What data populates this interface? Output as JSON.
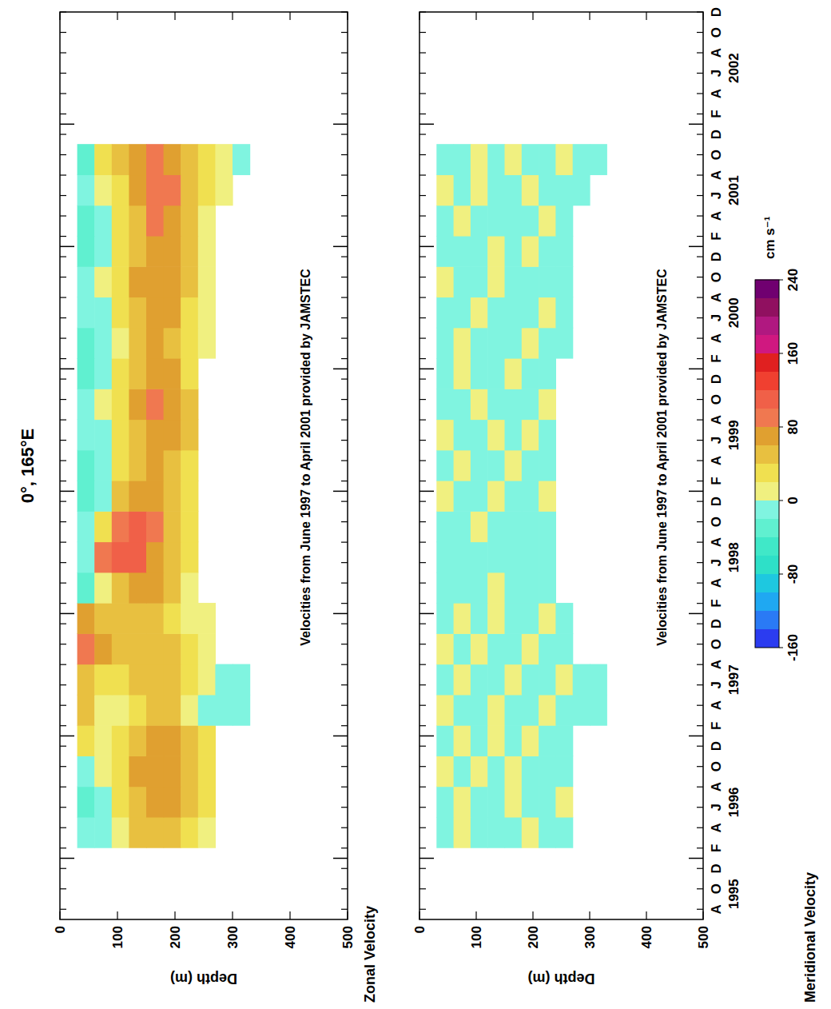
{
  "title": "0°, 165°E",
  "colorbar": {
    "label": "cm s⁻¹",
    "range": [
      -160,
      240
    ],
    "ticks": [
      -160,
      -80,
      0,
      80,
      160,
      240
    ],
    "levels": [
      -160,
      -140,
      -120,
      -100,
      -80,
      -60,
      -40,
      -20,
      0,
      20,
      40,
      60,
      80,
      100,
      120,
      140,
      160,
      180,
      200,
      220,
      240
    ],
    "colors": [
      "#2b3cf0",
      "#2a7af5",
      "#1fa8f2",
      "#1ec8e0",
      "#2ee0c8",
      "#40e8c8",
      "#60f0d0",
      "#80f4e0",
      "#f0f080",
      "#f0e050",
      "#e8c040",
      "#e0a030",
      "#f07850",
      "#f06048",
      "#f04030",
      "#e02020",
      "#d01880",
      "#b01880",
      "#901060",
      "#700070"
    ]
  },
  "chart_data": [
    {
      "type": "heatmap",
      "title": "Zonal Velocity",
      "y_label": "Depth (m)",
      "annotation": "Velocities from June 1997 to April 2001 provided by JAMSTEC",
      "tick_labels": "y",
      "xlim": [
        "1995-07",
        "2002-12"
      ],
      "xticks": [
        {
          "value": "1995-08",
          "label": "A"
        },
        {
          "value": "1995-10",
          "label": "O"
        },
        {
          "value": "1995-12",
          "label": "D"
        },
        {
          "value": "1996-02",
          "label": "F"
        },
        {
          "value": "1996-04",
          "label": "A"
        },
        {
          "value": "1996-06",
          "label": "J"
        },
        {
          "value": "1996-08",
          "label": "A"
        },
        {
          "value": "1996-10",
          "label": "O"
        },
        {
          "value": "1996-12",
          "label": "D"
        },
        {
          "value": "1997-02",
          "label": "F"
        },
        {
          "value": "1997-04",
          "label": "A"
        },
        {
          "value": "1997-06",
          "label": "J"
        },
        {
          "value": "1997-08",
          "label": "A"
        },
        {
          "value": "1997-10",
          "label": "O"
        },
        {
          "value": "1997-12",
          "label": "D"
        },
        {
          "value": "1998-02",
          "label": "F"
        },
        {
          "value": "1998-04",
          "label": "A"
        },
        {
          "value": "1998-06",
          "label": "J"
        },
        {
          "value": "1998-08",
          "label": "A"
        },
        {
          "value": "1998-10",
          "label": "O"
        },
        {
          "value": "1998-12",
          "label": "D"
        },
        {
          "value": "1999-02",
          "label": "F"
        },
        {
          "value": "1999-04",
          "label": "A"
        },
        {
          "value": "1999-06",
          "label": "J"
        },
        {
          "value": "1999-08",
          "label": "A"
        },
        {
          "value": "1999-10",
          "label": "O"
        },
        {
          "value": "1999-12",
          "label": "D"
        },
        {
          "value": "2000-02",
          "label": "F"
        },
        {
          "value": "2000-04",
          "label": "A"
        },
        {
          "value": "2000-06",
          "label": "J"
        },
        {
          "value": "2000-08",
          "label": "A"
        },
        {
          "value": "2000-10",
          "label": "O"
        },
        {
          "value": "2000-12",
          "label": "D"
        },
        {
          "value": "2001-02",
          "label": "F"
        },
        {
          "value": "2001-04",
          "label": "A"
        },
        {
          "value": "2001-06",
          "label": "J"
        },
        {
          "value": "2001-08",
          "label": "A"
        },
        {
          "value": "2001-10",
          "label": "O"
        },
        {
          "value": "2001-12",
          "label": "D"
        },
        {
          "value": "2002-02",
          "label": "F"
        },
        {
          "value": "2002-04",
          "label": "A"
        },
        {
          "value": "2002-06",
          "label": "J"
        },
        {
          "value": "2002-08",
          "label": "A"
        },
        {
          "value": "2002-10",
          "label": "O"
        },
        {
          "value": "2002-12",
          "label": "D"
        }
      ],
      "years": [
        1995,
        1996,
        1997,
        1998,
        1999,
        2000,
        2001,
        2002
      ],
      "ylim": [
        0,
        500
      ],
      "yticks": [
        0,
        100,
        200,
        300,
        400,
        500
      ],
      "x_edges": [
        "1996-02",
        "1996-05",
        "1996-08",
        "1996-11",
        "1997-02",
        "1997-05",
        "1997-08",
        "1997-11",
        "1998-02",
        "1998-05",
        "1998-08",
        "1998-11",
        "1999-02",
        "1999-05",
        "1999-08",
        "1999-11",
        "2000-02",
        "2000-05",
        "2000-08",
        "2000-11",
        "2001-02",
        "2001-05",
        "2001-08",
        "2001-11"
      ],
      "y_edges": [
        30,
        60,
        90,
        120,
        150,
        180,
        210,
        240,
        270,
        300,
        330
      ],
      "cells": [
        [
          -20,
          -10,
          10,
          40,
          50,
          40,
          30,
          10,
          null,
          null
        ],
        [
          -30,
          -10,
          20,
          50,
          60,
          60,
          40,
          20,
          null,
          null
        ],
        [
          -20,
          0,
          30,
          60,
          70,
          70,
          50,
          20,
          null,
          null
        ],
        [
          20,
          10,
          20,
          40,
          60,
          60,
          40,
          20,
          null,
          null
        ],
        [
          40,
          0,
          10,
          30,
          50,
          40,
          10,
          -10,
          -20,
          -20
        ],
        [
          50,
          30,
          20,
          40,
          50,
          40,
          20,
          0,
          -10,
          -20
        ],
        [
          80,
          60,
          40,
          40,
          50,
          40,
          20,
          10,
          null,
          null
        ],
        [
          60,
          50,
          40,
          40,
          40,
          30,
          10,
          0,
          null,
          null
        ],
        [
          -30,
          10,
          50,
          60,
          60,
          40,
          10,
          null,
          null,
          null
        ],
        [
          -10,
          80,
          110,
          100,
          70,
          50,
          20,
          null,
          null,
          null
        ],
        [
          -20,
          30,
          90,
          100,
          80,
          50,
          20,
          null,
          null,
          null
        ],
        [
          -40,
          -10,
          40,
          60,
          60,
          50,
          20,
          null,
          null,
          null
        ],
        [
          -30,
          -10,
          20,
          50,
          60,
          50,
          30,
          null,
          null,
          null
        ],
        [
          -20,
          -10,
          20,
          50,
          70,
          60,
          40,
          null,
          null,
          null
        ],
        [
          -20,
          0,
          30,
          60,
          80,
          70,
          40,
          null,
          null,
          null
        ],
        [
          -40,
          -20,
          20,
          50,
          70,
          60,
          30,
          null,
          null,
          null
        ],
        [
          -30,
          -20,
          10,
          40,
          60,
          50,
          30,
          10,
          null,
          null
        ],
        [
          -20,
          -10,
          20,
          50,
          70,
          60,
          30,
          10,
          null,
          null
        ],
        [
          -20,
          0,
          30,
          60,
          70,
          60,
          40,
          10,
          null,
          null
        ],
        [
          -30,
          -10,
          20,
          50,
          60,
          60,
          40,
          10,
          null,
          null
        ],
        [
          -30,
          -10,
          20,
          50,
          80,
          70,
          40,
          10,
          null,
          null
        ],
        [
          -20,
          10,
          30,
          60,
          90,
          80,
          40,
          20,
          0,
          null
        ],
        [
          -30,
          20,
          40,
          70,
          90,
          70,
          40,
          20,
          0,
          -10
        ]
      ]
    },
    {
      "type": "heatmap",
      "title": "Meridional Velocity",
      "y_label": "Depth (m)",
      "annotation": "Velocities from June 1997 to April 2001 provided by JAMSTEC",
      "xlim": [
        "1995-07",
        "2002-12"
      ],
      "xticks": [
        {
          "value": "1995-08",
          "label": "A"
        },
        {
          "value": "1995-10",
          "label": "O"
        },
        {
          "value": "1995-12",
          "label": "D"
        },
        {
          "value": "1996-02",
          "label": "F"
        },
        {
          "value": "1996-04",
          "label": "A"
        },
        {
          "value": "1996-06",
          "label": "J"
        },
        {
          "value": "1996-08",
          "label": "A"
        },
        {
          "value": "1996-10",
          "label": "O"
        },
        {
          "value": "1996-12",
          "label": "D"
        },
        {
          "value": "1997-02",
          "label": "F"
        },
        {
          "value": "1997-04",
          "label": "A"
        },
        {
          "value": "1997-06",
          "label": "J"
        },
        {
          "value": "1997-08",
          "label": "A"
        },
        {
          "value": "1997-10",
          "label": "O"
        },
        {
          "value": "1997-12",
          "label": "D"
        },
        {
          "value": "1998-02",
          "label": "F"
        },
        {
          "value": "1998-04",
          "label": "A"
        },
        {
          "value": "1998-06",
          "label": "J"
        },
        {
          "value": "1998-08",
          "label": "A"
        },
        {
          "value": "1998-10",
          "label": "O"
        },
        {
          "value": "1998-12",
          "label": "D"
        },
        {
          "value": "1999-02",
          "label": "F"
        },
        {
          "value": "1999-04",
          "label": "A"
        },
        {
          "value": "1999-06",
          "label": "J"
        },
        {
          "value": "1999-08",
          "label": "A"
        },
        {
          "value": "1999-10",
          "label": "O"
        },
        {
          "value": "1999-12",
          "label": "D"
        },
        {
          "value": "2000-02",
          "label": "F"
        },
        {
          "value": "2000-04",
          "label": "A"
        },
        {
          "value": "2000-06",
          "label": "J"
        },
        {
          "value": "2000-08",
          "label": "A"
        },
        {
          "value": "2000-10",
          "label": "O"
        },
        {
          "value": "2000-12",
          "label": "D"
        },
        {
          "value": "2001-02",
          "label": "F"
        },
        {
          "value": "2001-04",
          "label": "A"
        },
        {
          "value": "2001-06",
          "label": "J"
        },
        {
          "value": "2001-08",
          "label": "A"
        },
        {
          "value": "2001-10",
          "label": "O"
        },
        {
          "value": "2001-12",
          "label": "D"
        },
        {
          "value": "2002-02",
          "label": "F"
        },
        {
          "value": "2002-04",
          "label": "A"
        },
        {
          "value": "2002-06",
          "label": "J"
        },
        {
          "value": "2002-08",
          "label": "A"
        },
        {
          "value": "2002-10",
          "label": "O"
        },
        {
          "value": "2002-12",
          "label": "D"
        }
      ],
      "years": [
        1995,
        1996,
        1997,
        1998,
        1999,
        2000,
        2001,
        2002
      ],
      "ylim": [
        0,
        500
      ],
      "yticks": [
        0,
        100,
        200,
        300,
        400,
        500
      ],
      "x_edges": [
        "1996-02",
        "1996-05",
        "1996-08",
        "1996-11",
        "1997-02",
        "1997-05",
        "1997-08",
        "1997-11",
        "1998-02",
        "1998-05",
        "1998-08",
        "1998-11",
        "1999-02",
        "1999-05",
        "1999-08",
        "1999-11",
        "2000-02",
        "2000-05",
        "2000-08",
        "2000-11",
        "2001-02",
        "2001-05",
        "2001-08",
        "2001-11"
      ],
      "y_edges": [
        30,
        60,
        90,
        120,
        150,
        180,
        210,
        240,
        270,
        300,
        330
      ],
      "cells": [
        [
          -10,
          0,
          -10,
          -20,
          -10,
          10,
          -10,
          -10,
          null,
          null
        ],
        [
          -10,
          10,
          -10,
          -10,
          10,
          -20,
          -10,
          0,
          null,
          null
        ],
        [
          0,
          -10,
          10,
          -20,
          10,
          -10,
          -10,
          -10,
          null,
          null
        ],
        [
          -10,
          10,
          -10,
          0,
          -10,
          10,
          -10,
          -10,
          null,
          null
        ],
        [
          10,
          -10,
          -20,
          10,
          -10,
          -10,
          10,
          -10,
          -20,
          -10
        ],
        [
          -10,
          10,
          -10,
          -10,
          10,
          -10,
          -10,
          10,
          -10,
          -20
        ],
        [
          10,
          -10,
          10,
          -10,
          -10,
          10,
          -10,
          -10,
          null,
          null
        ],
        [
          -10,
          10,
          -10,
          10,
          -10,
          -10,
          10,
          -10,
          null,
          null
        ],
        [
          -10,
          -20,
          -10,
          10,
          -10,
          -10,
          -10,
          null,
          null,
          null
        ],
        [
          -20,
          -10,
          -10,
          -20,
          -10,
          -10,
          -10,
          null,
          null,
          null
        ],
        [
          -10,
          -10,
          10,
          -10,
          -20,
          -10,
          -10,
          null,
          null,
          null
        ],
        [
          10,
          -10,
          -10,
          10,
          -10,
          -10,
          10,
          null,
          null,
          null
        ],
        [
          -10,
          10,
          -10,
          -10,
          10,
          -10,
          -10,
          null,
          null,
          null
        ],
        [
          10,
          -10,
          -10,
          10,
          -10,
          10,
          -10,
          null,
          null,
          null
        ],
        [
          -10,
          -10,
          10,
          -10,
          -10,
          -10,
          10,
          null,
          null,
          null
        ],
        [
          -10,
          10,
          -10,
          -10,
          10,
          -10,
          -10,
          null,
          null,
          null
        ],
        [
          -10,
          10,
          -10,
          -10,
          -10,
          10,
          -10,
          -10,
          null,
          null
        ],
        [
          -10,
          -10,
          10,
          -10,
          -10,
          -10,
          10,
          -10,
          null,
          null
        ],
        [
          10,
          -10,
          -10,
          10,
          -10,
          -10,
          -10,
          -10,
          null,
          null
        ],
        [
          -10,
          -10,
          -10,
          10,
          -10,
          10,
          -10,
          -10,
          null,
          null
        ],
        [
          -10,
          10,
          -10,
          -10,
          -10,
          -10,
          10,
          -10,
          null,
          null
        ],
        [
          10,
          -10,
          10,
          -10,
          -10,
          10,
          -10,
          -10,
          -10,
          null
        ],
        [
          -10,
          -10,
          10,
          -10,
          10,
          -10,
          -10,
          10,
          -10,
          -10
        ]
      ]
    }
  ]
}
